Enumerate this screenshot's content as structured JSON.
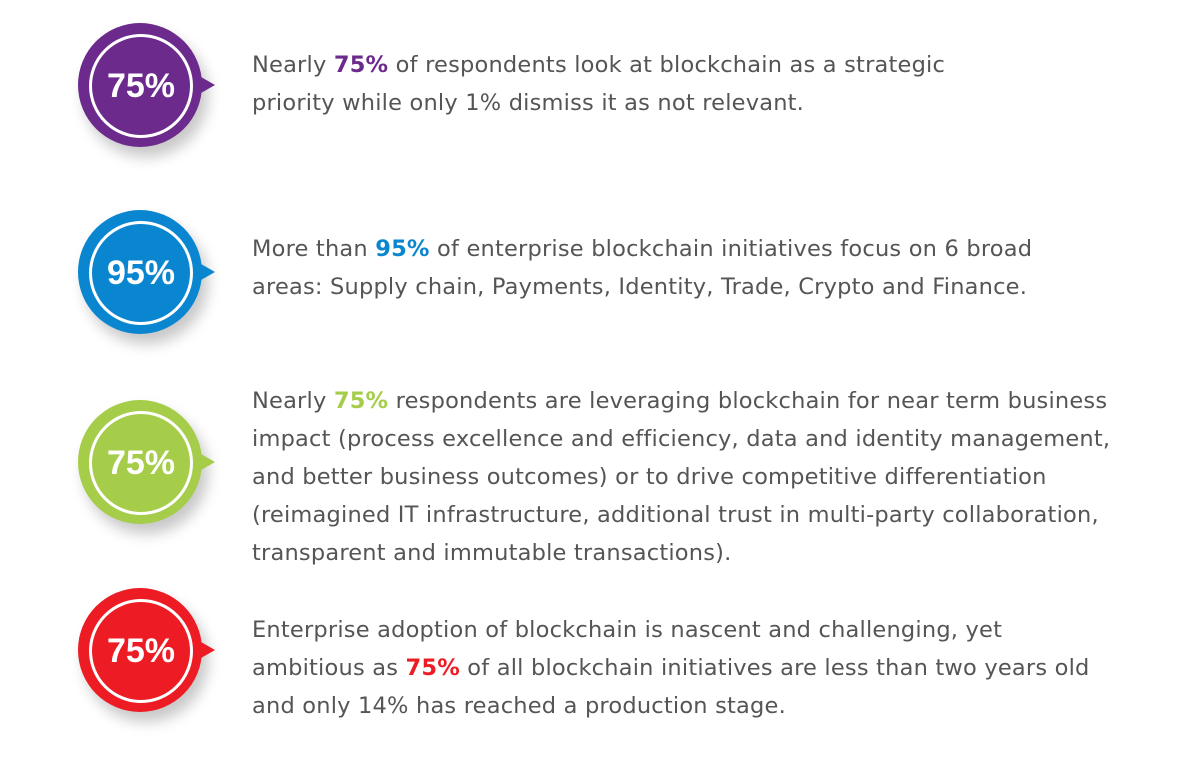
{
  "items": [
    {
      "badge": "75%",
      "color": "#6b2a8c",
      "before": "Nearly ",
      "highlight": "75%",
      "after": " of respondents look at blockchain as a strategic priority while only 1% dismiss it as not relevant."
    },
    {
      "badge": "95%",
      "color": "#0a86d0",
      "before": "More than ",
      "highlight": "95%",
      "after": " of enterprise blockchain initiatives focus on 6 broad areas: Supply chain, Payments, Identity, Trade, Crypto and Finance."
    },
    {
      "badge": "75%",
      "color": "#a5cd4a",
      "before": "Nearly ",
      "highlight": "75%",
      "after": " respondents are leveraging blockchain for near term business impact (process excellence and efficiency, data and identity management, and better business outcomes) or to drive competitive differentiation (reimagined IT infrastructure, additional trust in multi-party collaboration, transparent and immutable transactions)."
    },
    {
      "badge": "75%",
      "color": "#ed1c24",
      "before": "Enterprise adoption of blockchain is nascent and challenging, yet ambitious as ",
      "highlight": "75%",
      "after": " of all blockchain initiatives are less than two years old and only 14% has reached a production stage."
    }
  ]
}
